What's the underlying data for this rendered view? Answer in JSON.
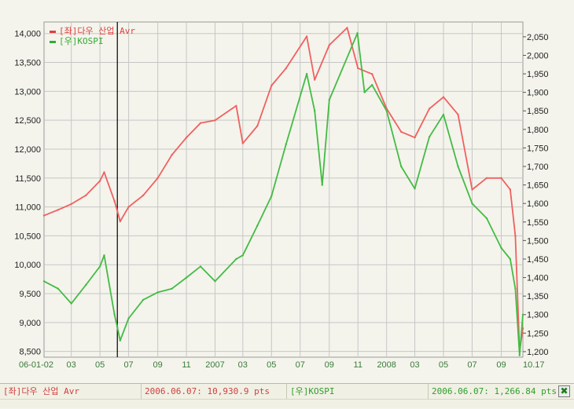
{
  "chart_data": {
    "type": "line",
    "x_tick_labels": [
      "06-01-02",
      "03",
      "05",
      "07",
      "09",
      "11",
      "2007",
      "03",
      "05",
      "07",
      "09",
      "11",
      "2008",
      "03",
      "05",
      "07",
      "09",
      "10.17"
    ],
    "left_axis": {
      "ticks": [
        "14,000",
        "13,500",
        "13,000",
        "12,500",
        "12,000",
        "11,500",
        "11,000",
        "10,500",
        "10,000",
        "9,500",
        "9,000",
        "8,500"
      ],
      "ylim": [
        8400,
        14200
      ]
    },
    "right_axis": {
      "ticks": [
        "2,050",
        "2,000",
        "1,950",
        "1,900",
        "1,850",
        "1,800",
        "1,750",
        "1,700",
        "1,650",
        "1,600",
        "1,550",
        "1,500",
        "1,450",
        "1,400",
        "1,350",
        "1,300",
        "1,250",
        "1,200"
      ],
      "ylim": [
        1185,
        2090
      ]
    },
    "series": [
      {
        "name": "[좌]다우 산업 Avr",
        "axis": "left",
        "color": "#f06060",
        "x": [
          "2006-01-02",
          "2006-02-01",
          "2006-03-01",
          "2006-04-01",
          "2006-05-01",
          "2006-05-10",
          "2006-06-01",
          "2006-06-07",
          "2006-06-13",
          "2006-07-01",
          "2006-08-01",
          "2006-09-01",
          "2006-10-01",
          "2006-11-01",
          "2006-12-01",
          "2007-01-01",
          "2007-02-15",
          "2007-03-01",
          "2007-04-01",
          "2007-05-01",
          "2007-06-01",
          "2007-07-15",
          "2007-08-01",
          "2007-09-01",
          "2007-10-09",
          "2007-11-01",
          "2007-12-01",
          "2008-01-01",
          "2008-02-01",
          "2008-03-01",
          "2008-04-01",
          "2008-05-01",
          "2008-06-01",
          "2008-07-01",
          "2008-08-01",
          "2008-09-01",
          "2008-09-20",
          "2008-10-01",
          "2008-10-10",
          "2008-10-17"
        ],
        "values": [
          10850,
          10950,
          11050,
          11200,
          11450,
          11600,
          11100,
          10930,
          10750,
          11000,
          11200,
          11500,
          11900,
          12200,
          12450,
          12500,
          12750,
          12100,
          12400,
          13100,
          13400,
          13950,
          13200,
          13800,
          14100,
          13400,
          13300,
          12700,
          12300,
          12200,
          12700,
          12900,
          12600,
          11300,
          11500,
          11500,
          11300,
          10500,
          8500,
          8900
        ]
      },
      {
        "name": "[우]KOSPI",
        "axis": "right",
        "color": "#44bb44",
        "x": [
          "2006-01-02",
          "2006-02-01",
          "2006-03-01",
          "2006-04-01",
          "2006-05-01",
          "2006-05-10",
          "2006-06-01",
          "2006-06-07",
          "2006-06-13",
          "2006-07-01",
          "2006-08-01",
          "2006-09-01",
          "2006-10-01",
          "2006-11-01",
          "2006-12-01",
          "2007-01-01",
          "2007-02-15",
          "2007-03-01",
          "2007-04-01",
          "2007-05-01",
          "2007-06-01",
          "2007-07-15",
          "2007-08-01",
          "2007-08-17",
          "2007-09-01",
          "2007-10-31",
          "2007-11-15",
          "2007-12-01",
          "2008-01-01",
          "2008-02-01",
          "2008-03-01",
          "2008-04-01",
          "2008-05-01",
          "2008-06-01",
          "2008-07-01",
          "2008-08-01",
          "2008-09-01",
          "2008-09-20",
          "2008-10-01",
          "2008-10-10",
          "2008-10-17"
        ],
        "values": [
          1390,
          1370,
          1330,
          1380,
          1430,
          1460,
          1300,
          1266,
          1230,
          1290,
          1340,
          1360,
          1370,
          1400,
          1430,
          1390,
          1450,
          1460,
          1540,
          1620,
          1760,
          1950,
          1850,
          1650,
          1880,
          2060,
          1900,
          1920,
          1850,
          1700,
          1640,
          1780,
          1840,
          1700,
          1600,
          1560,
          1480,
          1450,
          1370,
          1190,
          1300
        ]
      }
    ],
    "title": "",
    "xlabel": "",
    "ylabel": "",
    "grid": true,
    "legend_placement": "top-left",
    "background": "#f4f4ec",
    "grid_color": "#c6c6c6",
    "cursor_date": "2006-06-07"
  },
  "status_bar": {
    "left_series_label": "[좌]다우 산업 Avr",
    "left_series_value": "2006.06.07: 10,930.9 pts",
    "right_series_label": "[우]KOSPI",
    "right_series_value": "2006.06.07: 1,266.84 pts",
    "close_icon": "close-icon",
    "close_glyph": "✖",
    "left_color": "#e04040",
    "right_color": "#2e9e2e"
  }
}
